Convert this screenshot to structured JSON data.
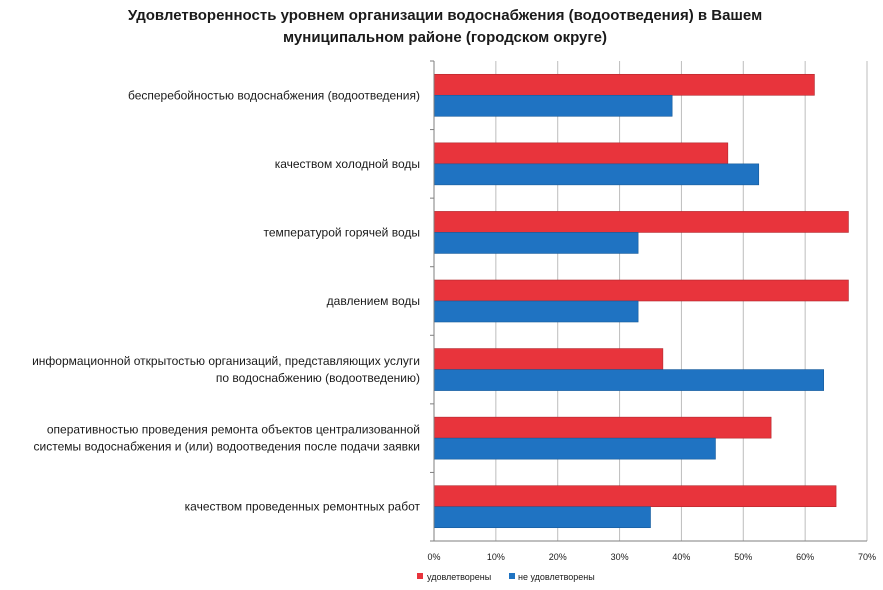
{
  "chart_data": {
    "type": "bar",
    "orientation": "horizontal",
    "title": "Удовлетворенность уровнем организации водоснабжения (водоотведения) в Вашем муниципальном районе (городском округе)",
    "title_lines": [
      "Удовлетворенность уровнем организации водоснабжения (водоотведения) в Вашем",
      "муниципальном районе (городском округе)"
    ],
    "categories": [
      [
        "бесперебойностью  водоснабжения (водоотведения)"
      ],
      [
        "качеством холодной воды"
      ],
      [
        "температурой  горячей воды"
      ],
      [
        "давлением воды"
      ],
      [
        "информационной открытостью организаций, представляющих услуги",
        "по водоснабжению (водоотведению)"
      ],
      [
        "оперативностью проведения ремонта  объектов централизованной",
        "системы водоснабжения и (или) водоотведения после подачи заявки"
      ],
      [
        "качеством проведенных ремонтных  работ"
      ]
    ],
    "series": [
      {
        "name": "удовлетворены",
        "color": "#e8343c",
        "values": [
          61.5,
          47.5,
          67,
          67,
          37,
          54.5,
          65
        ]
      },
      {
        "name": "не удовлетворены",
        "color": "#1f73c2",
        "values": [
          38.5,
          52.5,
          33,
          33,
          63,
          45.5,
          35
        ]
      }
    ],
    "xlim": [
      0,
      70
    ],
    "xticks": [
      "0%",
      "10%",
      "20%",
      "30%",
      "40%",
      "50%",
      "60%",
      "70%"
    ],
    "grid": true,
    "legend_position": "bottom"
  }
}
